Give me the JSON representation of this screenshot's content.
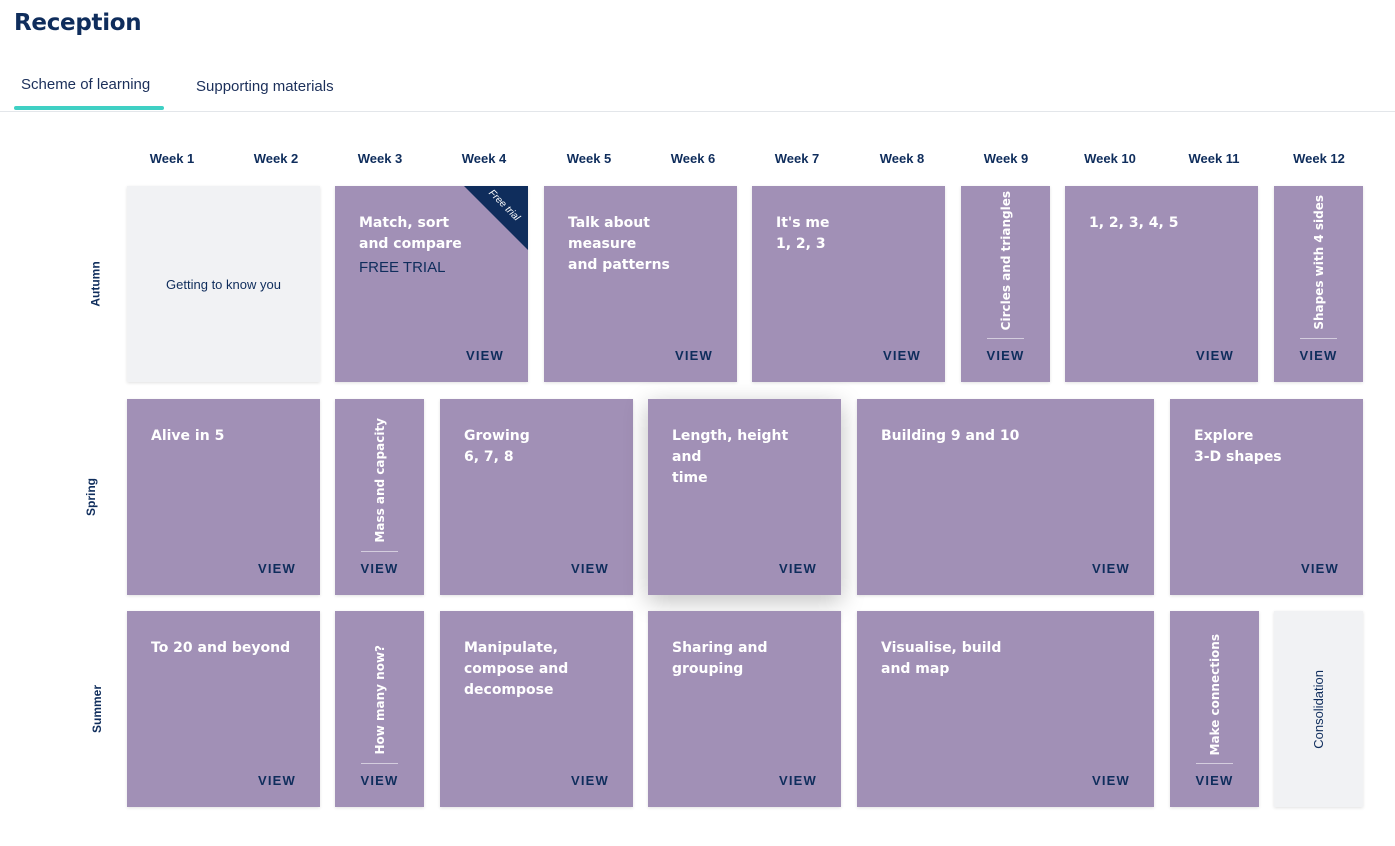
{
  "page": {
    "title": "Reception"
  },
  "tabs": [
    {
      "label": "Scheme of learning",
      "active": true
    },
    {
      "label": "Supporting materials",
      "active": false
    }
  ],
  "weeks": [
    "Week 1",
    "Week 2",
    "Week 3",
    "Week 4",
    "Week 5",
    "Week 6",
    "Week 7",
    "Week 8",
    "Week 9",
    "Week 10",
    "Week 11",
    "Week 12"
  ],
  "terms": [
    "Autumn",
    "Spring",
    "Summer"
  ],
  "view_label": "VIEW",
  "colors": {
    "card": "#a190b6",
    "grey_card": "#f1f2f4",
    "navy": "#0f2d5c",
    "tab_accent": "#3fd0c4"
  },
  "autumn": {
    "getting_to_know_you": "Getting to know you",
    "match_sort": "Match, sort\nand compare",
    "free_trial_label": "FREE TRIAL",
    "free_trial_ribbon": "Free trial",
    "talk_measure": "Talk about measure\nand patterns",
    "its_me": "It's me\n1, 2, 3",
    "circles_triangles": "Circles and triangles",
    "one_to_five": "1, 2, 3, 4, 5",
    "shapes_4_sides": "Shapes with 4 sides"
  },
  "spring": {
    "alive_in_5": "Alive in 5",
    "mass_capacity": "Mass and capacity",
    "growing": "Growing\n6, 7, 8",
    "length_height": "Length, height and\ntime",
    "building_9_10": "Building 9 and 10",
    "explore_3d": "Explore\n3-D shapes"
  },
  "summer": {
    "to_20": "To 20 and beyond",
    "how_many_now": "How many now?",
    "manipulate": "Manipulate,\ncompose and\ndecompose",
    "sharing": "Sharing and\ngrouping",
    "visualise": "Visualise, build\nand map",
    "make_connections": "Make connections",
    "consolidation": "Consolidation"
  }
}
